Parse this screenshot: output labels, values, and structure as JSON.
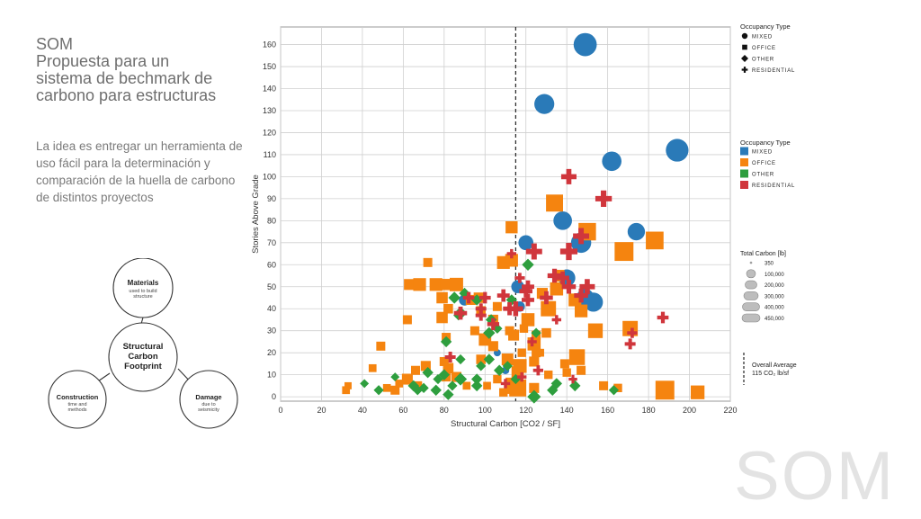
{
  "slide": {
    "title_lines": [
      "SOM",
      "Propuesta para un",
      "sistema de bechmark de",
      "carbono para estructuras"
    ],
    "body": "La idea es entregar un herramienta de uso fácil para la determinación y comparación de la huella de carbono de distintos proyectos",
    "logo": "SOM"
  },
  "diagram": {
    "center": [
      "Structural",
      "Carbon",
      "Footprint"
    ],
    "nodes": [
      {
        "title": "Materials",
        "sub": [
          "used to build",
          "structure"
        ]
      },
      {
        "title": "Construction",
        "sub": [
          "time and",
          "methods"
        ]
      },
      {
        "title": "Damage",
        "sub": [
          "due to",
          "seismicity"
        ]
      }
    ]
  },
  "chart_data": {
    "type": "scatter",
    "xlabel": "Structural Carbon [CO2 / SF]",
    "ylabel": "Stories Above Grade",
    "xlim": [
      0,
      220
    ],
    "ylim": [
      -2,
      168
    ],
    "xticks": [
      0,
      20,
      40,
      60,
      80,
      100,
      120,
      140,
      160,
      180,
      200,
      220
    ],
    "yticks": [
      0,
      10,
      20,
      30,
      40,
      50,
      60,
      70,
      80,
      90,
      100,
      110,
      120,
      130,
      140,
      150,
      160
    ],
    "grid": true,
    "colors": {
      "MIXED": "#2a7ab8",
      "OFFICE": "#f5840f",
      "OTHER": "#2e9e3e",
      "RESIDENTIAL": "#d0363c"
    },
    "reference_line": {
      "x": 115,
      "label_lines": [
        "Overall Average",
        "115 CO₂ lb/sf"
      ]
    },
    "legend_shape": {
      "title": "Occupancy Type",
      "items": [
        "MIXED",
        "OFFICE",
        "OTHER",
        "RESIDENTIAL"
      ]
    },
    "legend_color": {
      "title": "Occupancy Type",
      "items": [
        "MIXED",
        "OFFICE",
        "OTHER",
        "RESIDENTIAL"
      ]
    },
    "legend_size": {
      "title": "Total Carbon [lb]",
      "items": [
        "350",
        "100,000",
        "200,000",
        "300,000",
        "400,000",
        "450,000"
      ]
    },
    "series": [
      {
        "name": "MIXED",
        "points": [
          [
            149,
            160,
            450000
          ],
          [
            129,
            133,
            320000
          ],
          [
            194,
            112,
            430000
          ],
          [
            162,
            107,
            300000
          ],
          [
            174,
            75,
            230000
          ],
          [
            147,
            70,
            330000
          ],
          [
            138,
            80,
            270000
          ],
          [
            120,
            70,
            160000
          ],
          [
            140,
            54,
            220000
          ],
          [
            153,
            43,
            290000
          ],
          [
            149,
            45,
            240000
          ],
          [
            116,
            50,
            110000
          ],
          [
            85,
            51,
            90000
          ],
          [
            90,
            44,
            80000
          ],
          [
            117,
            41,
            60000
          ],
          [
            106,
            20,
            20000
          ],
          [
            110,
            12,
            25000
          ]
        ]
      },
      {
        "name": "OFFICE",
        "points": [
          [
            150,
            75,
            320000
          ],
          [
            134,
            88,
            300000
          ],
          [
            183,
            71,
            330000
          ],
          [
            168,
            66,
            380000
          ],
          [
            113,
            77,
            130000
          ],
          [
            113,
            62,
            150000
          ],
          [
            109,
            61,
            150000
          ],
          [
            136,
            55,
            120000
          ],
          [
            135,
            49,
            160000
          ],
          [
            128,
            47,
            100000
          ],
          [
            147,
            39,
            150000
          ],
          [
            144,
            44,
            150000
          ],
          [
            131,
            40,
            230000
          ],
          [
            121,
            35,
            160000
          ],
          [
            100,
            26,
            140000
          ],
          [
            114,
            28,
            100000
          ],
          [
            124,
            24,
            160000
          ],
          [
            125,
            28,
            60000
          ],
          [
            124,
            16,
            80000
          ],
          [
            125,
            20,
            60000
          ],
          [
            139,
            15,
            60000
          ],
          [
            147,
            12,
            60000
          ],
          [
            154,
            30,
            210000
          ],
          [
            171,
            31,
            230000
          ],
          [
            145,
            18,
            250000
          ],
          [
            111,
            17,
            120000
          ],
          [
            117,
            14,
            180000
          ],
          [
            116,
            11,
            140000
          ],
          [
            109,
            2,
            50000
          ],
          [
            114,
            5,
            270000
          ],
          [
            116,
            4,
            300000
          ],
          [
            124,
            4,
            80000
          ],
          [
            188,
            3,
            380000
          ],
          [
            204,
            2,
            180000
          ],
          [
            76,
            51,
            150000
          ],
          [
            86,
            51,
            170000
          ],
          [
            63,
            51,
            100000
          ],
          [
            68,
            51,
            150000
          ],
          [
            81,
            51,
            110000
          ],
          [
            79,
            45,
            110000
          ],
          [
            79,
            36,
            110000
          ],
          [
            82,
            40,
            70000
          ],
          [
            97,
            45,
            90000
          ],
          [
            93,
            44,
            80000
          ],
          [
            104,
            35,
            80000
          ],
          [
            98,
            39,
            70000
          ],
          [
            95,
            30,
            60000
          ],
          [
            106,
            41,
            60000
          ],
          [
            81,
            27,
            60000
          ],
          [
            72,
            61,
            60000
          ],
          [
            62,
            35,
            60000
          ],
          [
            49,
            23,
            60000
          ],
          [
            62,
            8,
            100000
          ],
          [
            66,
            12,
            60000
          ],
          [
            71,
            14,
            80000
          ],
          [
            82,
            13,
            90000
          ],
          [
            86,
            9,
            80000
          ],
          [
            80,
            16,
            60000
          ],
          [
            98,
            17,
            70000
          ],
          [
            118,
            20,
            50000
          ],
          [
            67,
            5,
            60000
          ],
          [
            56,
            3,
            60000
          ],
          [
            32,
            3,
            40000
          ],
          [
            45,
            13,
            40000
          ],
          [
            52,
            4,
            40000
          ],
          [
            104,
            23,
            80000
          ],
          [
            112,
            30,
            60000
          ],
          [
            130,
            29,
            70000
          ],
          [
            140,
            11,
            50000
          ],
          [
            158,
            5,
            60000
          ],
          [
            165,
            4,
            50000
          ],
          [
            127,
            20,
            40000
          ],
          [
            131,
            10,
            50000
          ],
          [
            106,
            8,
            50000
          ],
          [
            101,
            5,
            40000
          ],
          [
            91,
            5,
            40000
          ],
          [
            58,
            6,
            40000
          ],
          [
            33,
            5,
            30000
          ],
          [
            81,
            9,
            60000
          ],
          [
            119,
            31,
            50000
          ]
        ]
      },
      {
        "name": "OTHER",
        "points": [
          [
            121,
            60,
            50000
          ],
          [
            96,
            44,
            40000
          ],
          [
            88,
            38,
            60000
          ],
          [
            102,
            29,
            50000
          ],
          [
            113,
            44,
            40000
          ],
          [
            103,
            35,
            40000
          ],
          [
            85,
            45,
            50000
          ],
          [
            90,
            47,
            40000
          ],
          [
            87,
            37,
            30000
          ],
          [
            106,
            31,
            30000
          ],
          [
            102,
            17,
            40000
          ],
          [
            107,
            12,
            40000
          ],
          [
            81,
            25,
            40000
          ],
          [
            88,
            17,
            30000
          ],
          [
            88,
            8,
            60000
          ],
          [
            80,
            10,
            40000
          ],
          [
            96,
            8,
            40000
          ],
          [
            96,
            5,
            40000
          ],
          [
            76,
            3,
            40000
          ],
          [
            77,
            8,
            30000
          ],
          [
            72,
            11,
            40000
          ],
          [
            70,
            4,
            30000
          ],
          [
            65,
            5,
            40000
          ],
          [
            67,
            3,
            30000
          ],
          [
            48,
            3,
            30000
          ],
          [
            41,
            6,
            20000
          ],
          [
            56,
            9,
            20000
          ],
          [
            84,
            5,
            30000
          ],
          [
            124,
            0,
            70000
          ],
          [
            133,
            3,
            40000
          ],
          [
            135,
            6,
            40000
          ],
          [
            144,
            5,
            40000
          ],
          [
            111,
            14,
            30000
          ],
          [
            115,
            8,
            30000
          ],
          [
            163,
            3,
            30000
          ],
          [
            82,
            1,
            40000
          ],
          [
            98,
            14,
            30000
          ],
          [
            125,
            29,
            30000
          ]
        ]
      },
      {
        "name": "RESIDENTIAL",
        "points": [
          [
            141,
            100,
            150000
          ],
          [
            158,
            90,
            180000
          ],
          [
            147,
            73,
            170000
          ],
          [
            141,
            66,
            200000
          ],
          [
            124,
            66,
            170000
          ],
          [
            150,
            50,
            150000
          ],
          [
            134,
            55,
            120000
          ],
          [
            138,
            54,
            100000
          ],
          [
            141,
            50,
            120000
          ],
          [
            121,
            50,
            90000
          ],
          [
            115,
            40,
            140000
          ],
          [
            120,
            48,
            100000
          ],
          [
            112,
            40,
            100000
          ],
          [
            147,
            46,
            120000
          ],
          [
            130,
            45,
            100000
          ],
          [
            121,
            44,
            90000
          ],
          [
            109,
            46,
            90000
          ],
          [
            104,
            33,
            80000
          ],
          [
            88,
            38,
            100000
          ],
          [
            100,
            45,
            70000
          ],
          [
            92,
            45,
            70000
          ],
          [
            98,
            40,
            60000
          ],
          [
            117,
            54,
            50000
          ],
          [
            171,
            24,
            60000
          ],
          [
            187,
            36,
            70000
          ],
          [
            172,
            29,
            50000
          ],
          [
            83,
            18,
            60000
          ],
          [
            98,
            37,
            60000
          ],
          [
            113,
            65,
            40000
          ],
          [
            126,
            12,
            50000
          ],
          [
            118,
            9,
            40000
          ],
          [
            123,
            25,
            40000
          ],
          [
            135,
            35,
            40000
          ],
          [
            110,
            6,
            40000
          ],
          [
            143,
            8,
            30000
          ]
        ]
      }
    ]
  }
}
